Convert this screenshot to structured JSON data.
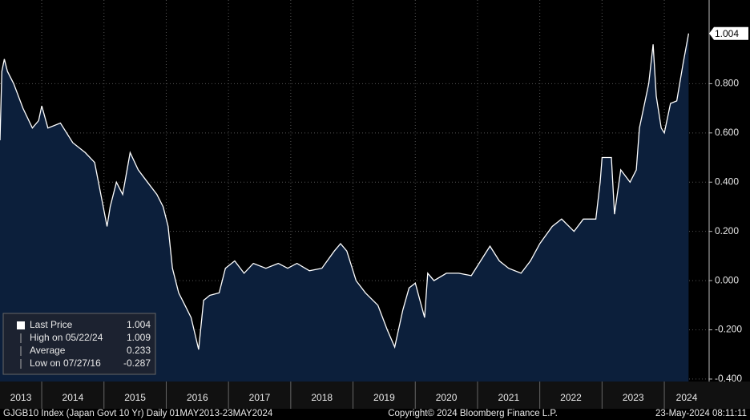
{
  "chart_data": {
    "type": "area",
    "series": [
      {
        "name": "Last Price",
        "color": "#ffffff",
        "fill": "#0c1f3b",
        "x": [
          2013.33,
          2013.36,
          2013.4,
          2013.45,
          2013.55,
          2013.7,
          2013.85,
          2013.95,
          2014.0,
          2014.1,
          2014.3,
          2014.5,
          2014.7,
          2014.85,
          2015.05,
          2015.1,
          2015.2,
          2015.3,
          2015.42,
          2015.55,
          2015.7,
          2015.85,
          2015.95,
          2016.03,
          2016.1,
          2016.2,
          2016.3,
          2016.4,
          2016.52,
          2016.6,
          2016.7,
          2016.85,
          2016.95,
          2017.1,
          2017.25,
          2017.4,
          2017.6,
          2017.8,
          2017.95,
          2018.1,
          2018.3,
          2018.5,
          2018.7,
          2018.8,
          2018.9,
          2019.05,
          2019.2,
          2019.4,
          2019.55,
          2019.67,
          2019.8,
          2019.9,
          2020.0,
          2020.15,
          2020.2,
          2020.3,
          2020.5,
          2020.7,
          2020.9,
          2021.1,
          2021.2,
          2021.35,
          2021.5,
          2021.7,
          2021.85,
          2022.0,
          2022.2,
          2022.35,
          2022.55,
          2022.7,
          2022.9,
          2022.97,
          2023.0,
          2023.15,
          2023.2,
          2023.3,
          2023.45,
          2023.55,
          2023.6,
          2023.75,
          2023.82,
          2023.87,
          2023.95,
          2024.0,
          2024.1,
          2024.2,
          2024.3,
          2024.39
        ],
        "values": [
          0.57,
          0.85,
          0.9,
          0.85,
          0.8,
          0.7,
          0.62,
          0.65,
          0.71,
          0.62,
          0.64,
          0.56,
          0.52,
          0.48,
          0.22,
          0.3,
          0.4,
          0.35,
          0.52,
          0.45,
          0.4,
          0.35,
          0.3,
          0.22,
          0.05,
          -0.05,
          -0.1,
          -0.15,
          -0.28,
          -0.08,
          -0.06,
          -0.05,
          0.05,
          0.08,
          0.03,
          0.07,
          0.05,
          0.07,
          0.05,
          0.07,
          0.04,
          0.05,
          0.12,
          0.15,
          0.12,
          0.0,
          -0.05,
          -0.1,
          -0.2,
          -0.27,
          -0.12,
          -0.03,
          -0.01,
          -0.15,
          0.03,
          0.0,
          0.03,
          0.03,
          0.02,
          0.1,
          0.14,
          0.08,
          0.05,
          0.03,
          0.08,
          0.15,
          0.22,
          0.25,
          0.2,
          0.25,
          0.25,
          0.4,
          0.5,
          0.5,
          0.27,
          0.45,
          0.4,
          0.45,
          0.62,
          0.8,
          0.96,
          0.75,
          0.62,
          0.6,
          0.72,
          0.73,
          0.88,
          1.004
        ]
      }
    ],
    "xlim": [
      2013.33,
      2024.72
    ],
    "xticks": [
      2013,
      2014,
      2015,
      2016,
      2017,
      2018,
      2019,
      2020,
      2021,
      2022,
      2023,
      2024
    ],
    "ylim": [
      -0.41,
      1.14
    ],
    "yticks": [
      {
        "value": 0.8,
        "label": "0.800"
      },
      {
        "value": 0.6,
        "label": "0.600"
      },
      {
        "value": 0.4,
        "label": "0.400"
      },
      {
        "value": 0.2,
        "label": "0.200"
      },
      {
        "value": 0,
        "label": "0.000"
      },
      {
        "value": -0.2,
        "label": "-0.200"
      },
      {
        "value": -0.4,
        "label": "-0.400"
      }
    ],
    "grid": true,
    "legend": {
      "items": [
        {
          "label": "Last Price",
          "value": 1.004
        },
        {
          "label": "High on 05/22/24",
          "value": 1.009
        },
        {
          "label": "Average",
          "value": 0.233
        },
        {
          "label": "Low on 07/27/16",
          "value": -0.287
        }
      ]
    },
    "footer": {
      "left": "GJGB10 Index (Japan Govt 10 Yr)  Daily 01MAY2013-23MAY2024",
      "center": "Copyright© 2024 Bloomberg Finance L.P.",
      "right": "23-May-2024 08:11:11"
    }
  }
}
